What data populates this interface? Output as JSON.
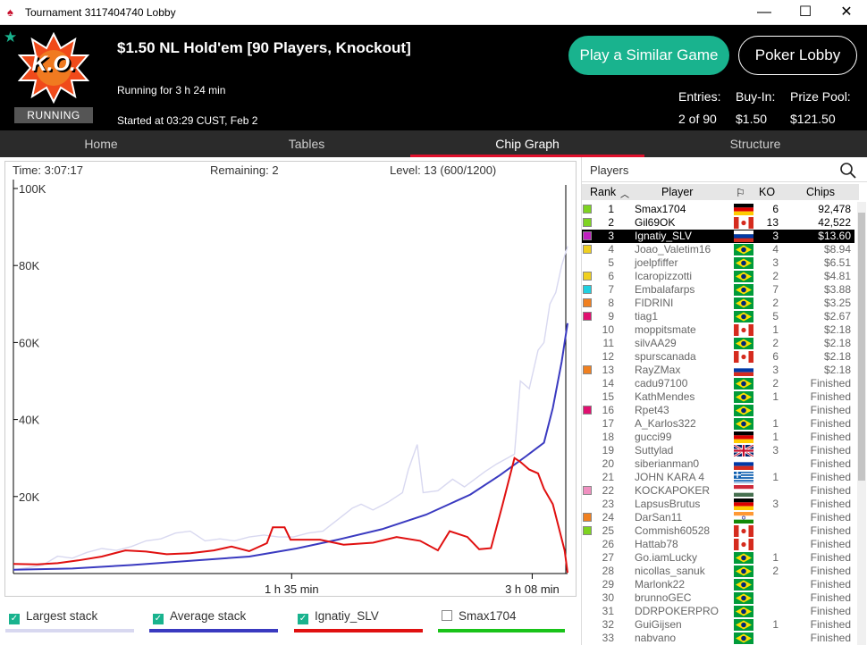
{
  "window": {
    "title": "Tournament 3117404740 Lobby",
    "minimize": "—",
    "maximize": "☐",
    "close": "✕"
  },
  "header": {
    "logo_text": "K.O.",
    "status": "RUNNING",
    "game_name": "$1.50 NL Hold'em [90 Players, Knockout]",
    "running_for": "Running for 3 h 24 min",
    "started": "Started at 03:29 CUST, Feb 2",
    "play_similar": "Play a Similar Game",
    "poker_lobby": "Poker Lobby",
    "entries_label": "Entries:",
    "entries_value": "2 of 90",
    "buyin_label": "Buy-In:",
    "buyin_value": "$1.50",
    "prize_label": "Prize Pool:",
    "prize_value": "$121.50"
  },
  "tabs": [
    {
      "label": "Home"
    },
    {
      "label": "Tables"
    },
    {
      "label": "Chip Graph",
      "active": true
    },
    {
      "label": "Structure"
    }
  ],
  "graph": {
    "time": "Time: 3:07:17",
    "remaining": "Remaining: 2",
    "level": "Level: 13 (600/1200)"
  },
  "chart_data": {
    "type": "line",
    "title": "",
    "xlabel": "",
    "ylabel": "",
    "x_ticks": [
      "1 h 35 min",
      "3 h 08 min"
    ],
    "y_ticks": [
      "100K",
      "80K",
      "60K",
      "40K",
      "20K"
    ],
    "ylim": [
      0,
      100000
    ],
    "xlim_minutes": [
      0,
      188
    ],
    "grid": false,
    "series": [
      {
        "name": "Largest stack",
        "color": "#d8d8f0",
        "points": [
          [
            0,
            1000
          ],
          [
            5,
            1500
          ],
          [
            10,
            2200
          ],
          [
            15,
            4500
          ],
          [
            20,
            4000
          ],
          [
            25,
            5500
          ],
          [
            30,
            6500
          ],
          [
            35,
            6000
          ],
          [
            40,
            7000
          ],
          [
            45,
            8500
          ],
          [
            50,
            9000
          ],
          [
            55,
            10500
          ],
          [
            60,
            11000
          ],
          [
            65,
            8500
          ],
          [
            70,
            9000
          ],
          [
            75,
            8500
          ],
          [
            80,
            9500
          ],
          [
            85,
            10000
          ],
          [
            90,
            9500
          ],
          [
            95,
            9500
          ],
          [
            100,
            10500
          ],
          [
            105,
            11000
          ],
          [
            110,
            14000
          ],
          [
            115,
            17000
          ],
          [
            118,
            18000
          ],
          [
            122,
            16500
          ],
          [
            127,
            18500
          ],
          [
            132,
            21000
          ],
          [
            134,
            27000
          ],
          [
            137,
            33500
          ],
          [
            139,
            21000
          ],
          [
            144,
            21500
          ],
          [
            149,
            24500
          ],
          [
            153,
            22500
          ],
          [
            160,
            26500
          ],
          [
            164,
            28500
          ],
          [
            170,
            31000
          ],
          [
            172,
            50000
          ],
          [
            175,
            48000
          ],
          [
            178,
            58000
          ],
          [
            180,
            60000
          ],
          [
            182,
            70000
          ],
          [
            184,
            73000
          ],
          [
            186,
            80000
          ],
          [
            188,
            85000
          ]
        ]
      },
      {
        "name": "Average stack",
        "color": "#3a3ac0",
        "points": [
          [
            0,
            1000
          ],
          [
            20,
            1300
          ],
          [
            40,
            2200
          ],
          [
            60,
            3300
          ],
          [
            80,
            4400
          ],
          [
            96,
            6500
          ],
          [
            110,
            8800
          ],
          [
            125,
            11500
          ],
          [
            140,
            15300
          ],
          [
            155,
            20500
          ],
          [
            165,
            25500
          ],
          [
            174,
            30500
          ],
          [
            180,
            34000
          ],
          [
            183,
            43000
          ],
          [
            186,
            55000
          ],
          [
            188,
            65000
          ]
        ]
      },
      {
        "name": "Ignatiy_SLV",
        "color": "#e01010",
        "points": [
          [
            0,
            2500
          ],
          [
            8,
            2400
          ],
          [
            15,
            2700
          ],
          [
            22,
            3400
          ],
          [
            30,
            4400
          ],
          [
            38,
            6000
          ],
          [
            45,
            5700
          ],
          [
            52,
            5000
          ],
          [
            60,
            5300
          ],
          [
            68,
            6000
          ],
          [
            74,
            7000
          ],
          [
            80,
            5800
          ],
          [
            86,
            7900
          ],
          [
            88,
            12000
          ],
          [
            92,
            12000
          ],
          [
            94,
            8800
          ],
          [
            104,
            8800
          ],
          [
            112,
            7500
          ],
          [
            122,
            8000
          ],
          [
            130,
            9500
          ],
          [
            138,
            8500
          ],
          [
            144,
            6000
          ],
          [
            148,
            11000
          ],
          [
            154,
            9500
          ],
          [
            158,
            6300
          ],
          [
            162,
            6600
          ],
          [
            166,
            18000
          ],
          [
            170,
            30000
          ],
          [
            172,
            29000
          ],
          [
            175,
            27000
          ],
          [
            178,
            26000
          ],
          [
            180,
            22000
          ],
          [
            183,
            18000
          ],
          [
            185,
            12000
          ],
          [
            187,
            6000
          ],
          [
            188,
            200
          ]
        ]
      },
      {
        "name": "Smax1704",
        "color": "#19c319",
        "points": []
      }
    ]
  },
  "legend": [
    {
      "label": "Largest stack",
      "checked": true,
      "color": "#d8d8f0"
    },
    {
      "label": "Average stack",
      "checked": true,
      "color": "#3a3ac0"
    },
    {
      "label": "Ignatiy_SLV",
      "checked": true,
      "color": "#e01010"
    },
    {
      "label": "Smax1704",
      "checked": false,
      "color": "#19c319"
    }
  ],
  "players": {
    "title": "Players",
    "columns": {
      "rank": "Rank",
      "player": "Player",
      "ko": "KO",
      "chips": "Chips"
    },
    "rows": [
      {
        "rank": "1",
        "name": "Smax1704",
        "flag": "de",
        "ko": "6",
        "chips": "92,478",
        "color": "#7ed321"
      },
      {
        "rank": "2",
        "name": "Gil69OK",
        "flag": "ca",
        "ko": "13",
        "chips": "42,522",
        "color": "#7ed321"
      },
      {
        "rank": "3",
        "name": "Ignatiy_SLV",
        "flag": "ru",
        "ko": "3",
        "chips": "$13.60",
        "color": "#c020c0",
        "selected": true
      },
      {
        "rank": "4",
        "name": "Joao_Valetim16",
        "flag": "br",
        "ko": "4",
        "chips": "$8.94",
        "color": "#f0d020"
      },
      {
        "rank": "5",
        "name": "joelpfiffer",
        "flag": "br",
        "ko": "3",
        "chips": "$6.51",
        "color": ""
      },
      {
        "rank": "6",
        "name": "Icaropizzotti",
        "flag": "br",
        "ko": "2",
        "chips": "$4.81",
        "color": "#f0d020"
      },
      {
        "rank": "7",
        "name": "Embalafarps",
        "flag": "br",
        "ko": "7",
        "chips": "$3.88",
        "color": "#20d0e0"
      },
      {
        "rank": "8",
        "name": "FIDRINI",
        "flag": "br",
        "ko": "2",
        "chips": "$3.25",
        "color": "#f08020"
      },
      {
        "rank": "9",
        "name": "tiag1",
        "flag": "br",
        "ko": "5",
        "chips": "$2.67",
        "color": "#e01070"
      },
      {
        "rank": "10",
        "name": "moppitsmate",
        "flag": "ca",
        "ko": "1",
        "chips": "$2.18",
        "color": ""
      },
      {
        "rank": "11",
        "name": "silvAA29",
        "flag": "br",
        "ko": "2",
        "chips": "$2.18",
        "color": ""
      },
      {
        "rank": "12",
        "name": "spurscanada",
        "flag": "ca",
        "ko": "6",
        "chips": "$2.18",
        "color": ""
      },
      {
        "rank": "13",
        "name": "RayZMax",
        "flag": "ru",
        "ko": "3",
        "chips": "$2.18",
        "color": "#f08020"
      },
      {
        "rank": "14",
        "name": "cadu97100",
        "flag": "br",
        "ko": "2",
        "chips": "Finished",
        "color": ""
      },
      {
        "rank": "15",
        "name": "KathMendes",
        "flag": "br",
        "ko": "1",
        "chips": "Finished",
        "color": ""
      },
      {
        "rank": "16",
        "name": "Rpet43",
        "flag": "br",
        "ko": "",
        "chips": "Finished",
        "color": "#e01070"
      },
      {
        "rank": "17",
        "name": "A_Karlos322",
        "flag": "br",
        "ko": "1",
        "chips": "Finished",
        "color": ""
      },
      {
        "rank": "18",
        "name": "gucci99",
        "flag": "de",
        "ko": "1",
        "chips": "Finished",
        "color": ""
      },
      {
        "rank": "19",
        "name": "Suttylad",
        "flag": "gb",
        "ko": "3",
        "chips": "Finished",
        "color": ""
      },
      {
        "rank": "20",
        "name": "siberianman0",
        "flag": "ru",
        "ko": "",
        "chips": "Finished",
        "color": ""
      },
      {
        "rank": "21",
        "name": "JOHN KARA 4",
        "flag": "gr",
        "ko": "1",
        "chips": "Finished",
        "color": ""
      },
      {
        "rank": "22",
        "name": "KOCKAPOKER",
        "flag": "hu",
        "ko": "",
        "chips": "Finished",
        "color": "#f090c0"
      },
      {
        "rank": "23",
        "name": "LapsusBrutus",
        "flag": "de",
        "ko": "3",
        "chips": "Finished",
        "color": ""
      },
      {
        "rank": "24",
        "name": "DarSan11",
        "flag": "in",
        "ko": "",
        "chips": "Finished",
        "color": "#f08020"
      },
      {
        "rank": "25",
        "name": "Commish60528",
        "flag": "ca",
        "ko": "",
        "chips": "Finished",
        "color": "#7ed321"
      },
      {
        "rank": "26",
        "name": "Hattab78",
        "flag": "ca",
        "ko": "",
        "chips": "Finished",
        "color": ""
      },
      {
        "rank": "27",
        "name": "Go.iamLucky",
        "flag": "br",
        "ko": "1",
        "chips": "Finished",
        "color": ""
      },
      {
        "rank": "28",
        "name": "nicollas_sanuk",
        "flag": "br",
        "ko": "2",
        "chips": "Finished",
        "color": ""
      },
      {
        "rank": "29",
        "name": "Marlonk22",
        "flag": "br",
        "ko": "",
        "chips": "Finished",
        "color": ""
      },
      {
        "rank": "30",
        "name": "brunnoGEC",
        "flag": "br",
        "ko": "",
        "chips": "Finished",
        "color": ""
      },
      {
        "rank": "31",
        "name": "DDRPOKERPRO",
        "flag": "br",
        "ko": "",
        "chips": "Finished",
        "color": ""
      },
      {
        "rank": "32",
        "name": "GuiGijsen",
        "flag": "br",
        "ko": "1",
        "chips": "Finished",
        "color": ""
      },
      {
        "rank": "33",
        "name": "nabvano",
        "flag": "br",
        "ko": "",
        "chips": "Finished",
        "color": ""
      }
    ]
  }
}
